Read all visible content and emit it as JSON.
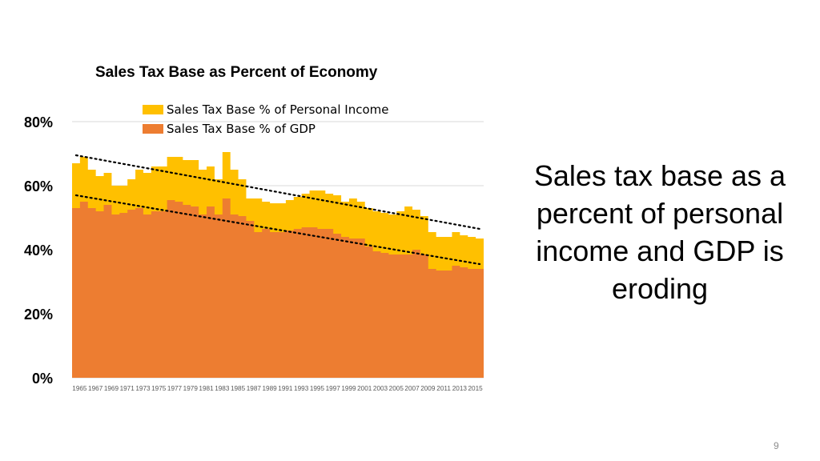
{
  "slide": {
    "side_text": "Sales tax base as a percent of personal income and GDP is eroding",
    "page_number": "9"
  },
  "chart_data": {
    "type": "area",
    "title": "Sales Tax Base as Percent of Economy",
    "xlabel": "",
    "ylabel": "",
    "x": [
      1965,
      1966,
      1967,
      1968,
      1969,
      1970,
      1971,
      1972,
      1973,
      1974,
      1975,
      1976,
      1977,
      1978,
      1979,
      1980,
      1981,
      1982,
      1983,
      1984,
      1985,
      1986,
      1987,
      1988,
      1989,
      1990,
      1991,
      1992,
      1993,
      1994,
      1995,
      1996,
      1997,
      1998,
      1999,
      2000,
      2001,
      2002,
      2003,
      2004,
      2005,
      2006,
      2007,
      2008,
      2009,
      2010,
      2011,
      2012,
      2013,
      2014,
      2015,
      2016
    ],
    "x_tick_labels": [
      "1965",
      "1967",
      "1969",
      "1971",
      "1973",
      "1975",
      "1977",
      "1979",
      "1981",
      "1983",
      "1985",
      "1987",
      "1989",
      "1991",
      "1993",
      "1995",
      "1997",
      "1999",
      "2001",
      "2003",
      "2005",
      "2007",
      "2009",
      "2011",
      "2013",
      "2015"
    ],
    "y_tick_labels": [
      "0%",
      "20%",
      "40%",
      "60%",
      "80%"
    ],
    "ylim": [
      0,
      80
    ],
    "grid": true,
    "legend_position": "top",
    "series": [
      {
        "name": "Sales Tax Base % of Personal Income",
        "color": "#ffc000",
        "values": [
          67,
          69,
          65,
          63,
          64,
          60,
          60,
          62,
          65,
          64,
          66,
          66,
          69,
          69,
          68,
          68,
          65,
          66,
          62,
          70.5,
          65,
          62,
          56,
          56,
          55,
          54.5,
          54.5,
          55.5,
          56.5,
          57.5,
          58.5,
          58.5,
          57.5,
          57,
          55,
          56,
          55,
          53,
          52,
          51.5,
          51,
          52,
          53.5,
          52.5,
          50.5,
          45.5,
          44,
          44,
          45.5,
          44.5,
          44,
          43.5
        ]
      },
      {
        "name": "Sales Tax Base % of GDP",
        "color": "#ed7d31",
        "values": [
          53,
          55,
          53,
          52,
          54,
          51,
          51.5,
          52.5,
          53,
          51,
          52,
          52,
          55.5,
          55,
          54,
          53.5,
          51,
          53.5,
          51,
          56,
          51,
          50.5,
          49,
          45.5,
          46.5,
          45.5,
          45.5,
          46,
          46.5,
          47,
          47,
          46.5,
          46.5,
          45,
          44,
          43.5,
          43.5,
          41,
          39.5,
          39,
          38.5,
          38.5,
          38.5,
          40,
          38.5,
          34,
          33.5,
          33.5,
          35,
          34.5,
          34,
          34
        ]
      }
    ],
    "trendlines": [
      {
        "series": "Sales Tax Base % of Personal Income",
        "start": 69.5,
        "end": 46.5
      },
      {
        "series": "Sales Tax Base % of GDP",
        "start": 57,
        "end": 35.5
      }
    ]
  }
}
